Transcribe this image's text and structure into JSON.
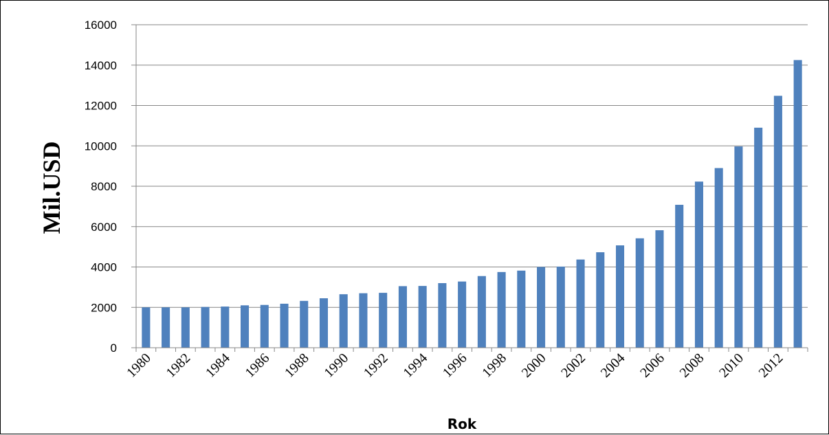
{
  "chart_data": {
    "type": "bar",
    "title": "",
    "xlabel": "Rok",
    "ylabel": "Mil.USD",
    "ylim": [
      0,
      16000
    ],
    "yticks": [
      0,
      2000,
      4000,
      6000,
      8000,
      10000,
      12000,
      14000,
      16000
    ],
    "grid": true,
    "legend": "none",
    "bar_color": "#4F81BD",
    "categories": [
      "1980",
      "1981",
      "1982",
      "1983",
      "1984",
      "1985",
      "1986",
      "1987",
      "1988",
      "1989",
      "1990",
      "1991",
      "1992",
      "1993",
      "1994",
      "1995",
      "1996",
      "1997",
      "1998",
      "1999",
      "2000",
      "2001",
      "2002",
      "2003",
      "2004",
      "2005",
      "2006",
      "2007",
      "2008",
      "2009",
      "2010",
      "2011",
      "2012",
      "2013"
    ],
    "tick_labels": [
      "1980",
      "1982",
      "1984",
      "1986",
      "1988",
      "1990",
      "1992",
      "1994",
      "1996",
      "1998",
      "2000",
      "2002",
      "2004",
      "2006",
      "2008",
      "2010",
      "2012"
    ],
    "values": [
      2000,
      2000,
      2000,
      2020,
      2040,
      2100,
      2120,
      2180,
      2320,
      2450,
      2650,
      2700,
      2720,
      3050,
      3060,
      3200,
      3280,
      3550,
      3750,
      3820,
      4000,
      4020,
      4370,
      4730,
      5070,
      5420,
      5820,
      7080,
      8230,
      8900,
      9970,
      10900,
      12480,
      14250
    ]
  }
}
